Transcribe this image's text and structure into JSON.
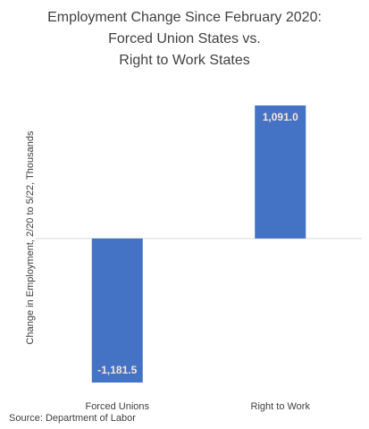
{
  "chart_data": {
    "type": "bar",
    "title_lines": [
      "Employment Change Since February 2020:",
      "Forced Union States vs.",
      "Right to Work States"
    ],
    "ylabel": "Change in Employment, 2/20 to 5/22, Thousands",
    "xlabel": "",
    "categories": [
      "Forced Unions",
      "Right to Work"
    ],
    "values": [
      -1181.5,
      1091.0
    ],
    "data_labels": [
      "-1,181.5",
      "1,091.0"
    ],
    "ylim": [
      -1181.5,
      1091.0
    ],
    "grid": false,
    "legend": "none",
    "bar_color": "#4472c4",
    "label_color": "#fbe5d6",
    "axis_color": "#d9d9d9"
  },
  "source": "Source: Department of Labor"
}
